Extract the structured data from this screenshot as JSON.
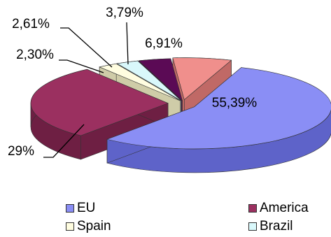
{
  "chart_data": {
    "type": "pie",
    "style": "3d-exploded",
    "slices": [
      {
        "name": "EU",
        "label": "55,39%",
        "value": 55.39,
        "color": "#8a8ef5",
        "side": "#5e63c9"
      },
      {
        "name": "America",
        "label": "29%",
        "value": 29.0,
        "color": "#9b3060",
        "side": "#6e1f43"
      },
      {
        "name": "Spain",
        "label": "2,30%",
        "value": 2.3,
        "color": "#fffde0",
        "side": "#cfcca8"
      },
      {
        "name": "Brazil",
        "label": "2,61%",
        "value": 2.61,
        "color": "#d9f8fb",
        "side": "#a5c8cc"
      },
      {
        "name": "",
        "label": "3,79%",
        "value": 3.79,
        "color": "#5b0a55",
        "side": "#3c0639"
      },
      {
        "name": "",
        "label": "6,91%",
        "value": 6.91,
        "color": "#f08f8c",
        "side": "#c06966"
      }
    ],
    "legend": [
      {
        "name": "EU",
        "color": "#8a8ef5"
      },
      {
        "name": "America",
        "color": "#9b3060"
      },
      {
        "name": "Spain",
        "color": "#fffde0"
      },
      {
        "name": "Brazil",
        "color": "#d9f8fb"
      }
    ],
    "legend_placement": "bottom"
  }
}
